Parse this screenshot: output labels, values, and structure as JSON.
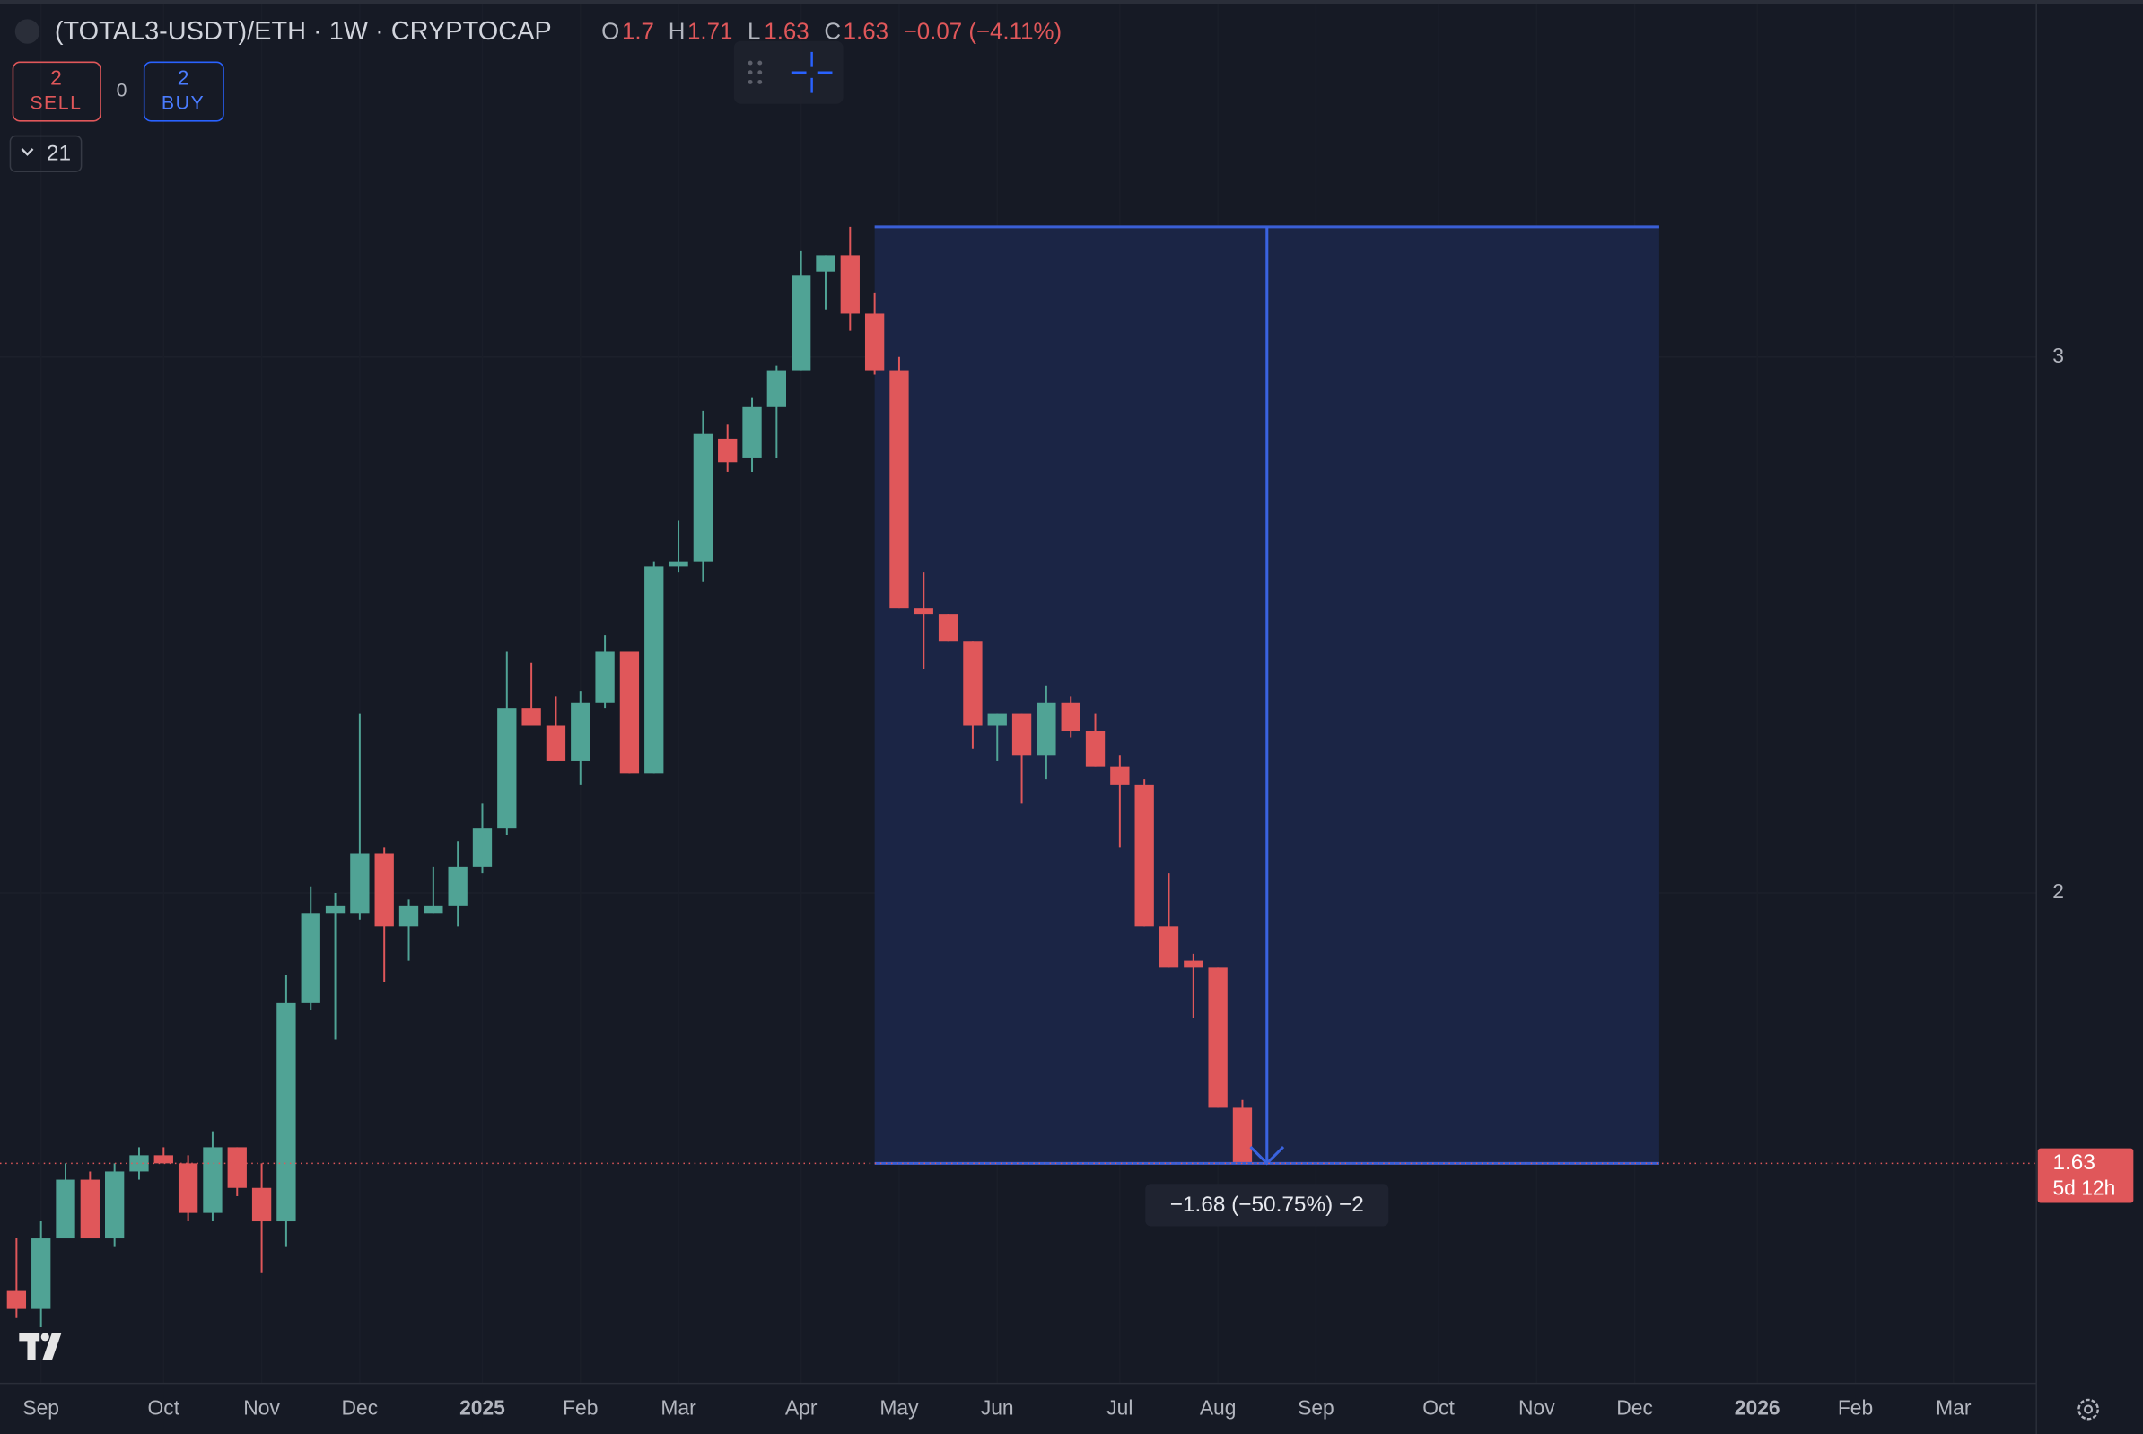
{
  "header": {
    "title": "(TOTAL3-USDT)/ETH · 1W · CRYPTOCAP",
    "o_label": "O",
    "h_label": "H",
    "l_label": "L",
    "c_label": "C",
    "change": "−0.07 (−4.11%)"
  },
  "trade": {
    "sell_count": "2",
    "sell_label": "SELL",
    "spread": "0",
    "buy_count": "2",
    "buy_label": "BUY"
  },
  "indicators": "21",
  "price_label": {
    "countdown": "5d 12h"
  },
  "measure": {
    "label": "−1.68 (−50.75%) −2"
  },
  "chart_data": {
    "type": "candlestick",
    "log_scale": true,
    "grid": true,
    "up_color": "#50a395",
    "down_color": "#e0575a",
    "ylim": [
      1.38,
      3.93
    ],
    "yticks": [
      2,
      3
    ],
    "categories": [
      null,
      "Sep",
      null,
      null,
      null,
      null,
      "Oct",
      null,
      null,
      null,
      "Nov",
      null,
      null,
      null,
      "Dec",
      null,
      null,
      null,
      null,
      "2025",
      null,
      null,
      null,
      "Feb",
      null,
      null,
      null,
      "Mar",
      null,
      null,
      null,
      null,
      "Apr",
      null,
      null,
      null,
      "May",
      null,
      null,
      null,
      "Jun",
      null,
      null,
      null,
      null,
      "Jul",
      null,
      null,
      null,
      "Aug",
      null,
      null,
      null,
      "Sep",
      null,
      null,
      null,
      null,
      "Oct",
      null,
      null,
      null,
      "Nov",
      null,
      null,
      null,
      "Dec",
      null,
      null,
      null,
      null,
      "2026",
      null,
      null,
      null,
      "Feb",
      null,
      null,
      null,
      "Mar",
      null,
      null,
      null
    ],
    "open": [
      1.48,
      1.46,
      1.54,
      1.61,
      1.54,
      1.62,
      1.64,
      1.63,
      1.57,
      1.65,
      1.6,
      1.56,
      1.84,
      1.97,
      1.97,
      2.06,
      1.95,
      1.97,
      1.98,
      2.04,
      2.1,
      2.3,
      2.27,
      2.21,
      2.31,
      2.4,
      2.19,
      2.56,
      2.57,
      2.82,
      2.78,
      2.89,
      2.97,
      3.2,
      3.24,
      3.1,
      2.97,
      2.48,
      2.47,
      2.42,
      2.27,
      2.29,
      2.22,
      2.31,
      2.26,
      2.2,
      2.17,
      1.95,
      1.9,
      1.89,
      1.7,
      null,
      null,
      null,
      null,
      null,
      null,
      null,
      null,
      null,
      null,
      null,
      null,
      null,
      null,
      null,
      null,
      null,
      null,
      null,
      null,
      null,
      null,
      null,
      null,
      null,
      null,
      null,
      null,
      null,
      null,
      null,
      null
    ],
    "high": [
      1.54,
      1.56,
      1.63,
      1.62,
      1.63,
      1.65,
      1.65,
      1.64,
      1.67,
      1.65,
      1.63,
      1.88,
      2.01,
      2.0,
      2.29,
      2.07,
      1.99,
      2.04,
      2.08,
      2.14,
      2.4,
      2.38,
      2.32,
      2.33,
      2.43,
      2.4,
      2.57,
      2.65,
      2.88,
      2.85,
      2.91,
      2.98,
      3.25,
      3.24,
      3.31,
      3.15,
      3.0,
      2.55,
      2.47,
      2.42,
      2.29,
      2.29,
      2.34,
      2.32,
      2.29,
      2.22,
      2.18,
      2.03,
      1.91,
      1.89,
      1.71,
      null,
      null,
      null,
      null,
      null,
      null,
      null,
      null,
      null,
      null,
      null,
      null,
      null,
      null,
      null,
      null,
      null,
      null,
      null,
      null,
      null,
      null,
      null,
      null,
      null,
      null,
      null,
      null,
      null,
      null,
      null,
      null
    ],
    "low": [
      1.45,
      1.44,
      1.54,
      1.54,
      1.53,
      1.61,
      1.63,
      1.56,
      1.56,
      1.59,
      1.5,
      1.53,
      1.83,
      1.79,
      1.96,
      1.87,
      1.9,
      1.97,
      1.95,
      2.03,
      2.09,
      2.27,
      2.21,
      2.17,
      2.3,
      2.19,
      2.19,
      2.55,
      2.53,
      2.75,
      2.75,
      2.78,
      2.97,
      3.11,
      3.06,
      2.96,
      2.48,
      2.37,
      2.42,
      2.23,
      2.21,
      2.14,
      2.18,
      2.25,
      2.2,
      2.07,
      1.95,
      1.89,
      1.82,
      1.7,
      1.63,
      null,
      null,
      null,
      null,
      null,
      null,
      null,
      null,
      null,
      null,
      null,
      null,
      null,
      null,
      null,
      null,
      null,
      null,
      null,
      null,
      null,
      null,
      null,
      null,
      null,
      null,
      null,
      null,
      null,
      null,
      null,
      null
    ],
    "close": [
      1.46,
      1.54,
      1.61,
      1.54,
      1.62,
      1.64,
      1.63,
      1.57,
      1.65,
      1.6,
      1.56,
      1.84,
      1.97,
      1.98,
      2.06,
      1.95,
      1.98,
      1.98,
      2.04,
      2.1,
      2.3,
      2.27,
      2.21,
      2.31,
      2.4,
      2.19,
      2.56,
      2.57,
      2.83,
      2.77,
      2.89,
      2.97,
      3.19,
      3.24,
      3.1,
      2.97,
      2.48,
      2.47,
      2.42,
      2.27,
      2.29,
      2.22,
      2.31,
      2.26,
      2.2,
      2.17,
      1.95,
      1.89,
      1.89,
      1.7,
      1.63,
      null,
      null,
      null,
      null,
      null,
      null,
      null,
      null,
      null,
      null,
      null,
      null,
      null,
      null,
      null,
      null,
      null,
      null,
      null,
      null,
      null,
      null,
      null,
      null,
      null,
      null,
      null,
      null,
      null,
      null,
      null,
      null
    ]
  }
}
